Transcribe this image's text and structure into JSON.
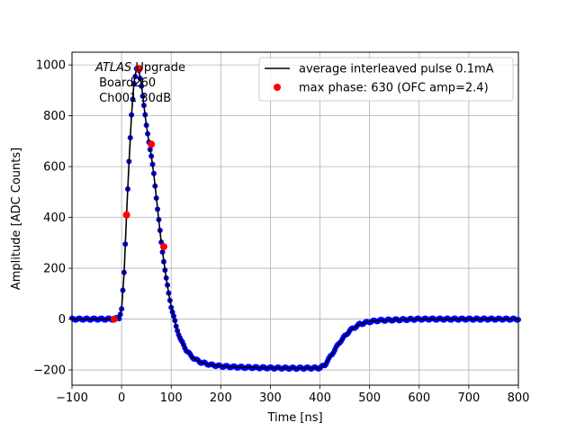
{
  "chart_data": {
    "type": "scatter",
    "title": "",
    "xlabel": "Time [ns]",
    "ylabel": "Amplitude [ADC Counts]",
    "xlim": [
      -100,
      800
    ],
    "ylim": [
      -260,
      1050
    ],
    "xticks": [
      -100,
      0,
      100,
      200,
      300,
      400,
      500,
      600,
      700,
      800
    ],
    "yticks": [
      -200,
      0,
      200,
      400,
      600,
      800,
      1000
    ],
    "grid": true,
    "legend_position": "top-right",
    "annotation": {
      "italic": "ATLAS",
      "rest": " Upgrade",
      "line2": " Board260",
      "line3": " Ch001 30dB"
    },
    "series": [
      {
        "name": "average interleaved pulse 0.1mA",
        "kind": "line",
        "color": "#000000",
        "points_color": "#0000ff",
        "x": [
          -100,
          -60,
          -30,
          -15,
          -5,
          0,
          5,
          10,
          15,
          20,
          25,
          30,
          35,
          40,
          45,
          50,
          55,
          60,
          65,
          70,
          75,
          80,
          85,
          90,
          95,
          100,
          110,
          120,
          130,
          140,
          150,
          160,
          170,
          180,
          200,
          225,
          250,
          300,
          350,
          400,
          410,
          420,
          440,
          460,
          480,
          500,
          520,
          550,
          600,
          650,
          700,
          750,
          800
        ],
        "y": [
          0,
          0,
          0,
          0,
          5,
          40,
          180,
          410,
          620,
          800,
          930,
          985,
          975,
          920,
          840,
          760,
          700,
          640,
          570,
          480,
          390,
          300,
          230,
          160,
          100,
          50,
          -30,
          -85,
          -120,
          -145,
          -160,
          -170,
          -175,
          -180,
          -185,
          -188,
          -190,
          -192,
          -193,
          -192,
          -180,
          -150,
          -90,
          -45,
          -20,
          -10,
          -5,
          -3,
          0,
          0,
          0,
          0,
          0
        ]
      },
      {
        "name": "max phase: 630 (OFC amp=2.4)",
        "kind": "markers",
        "color": "#ff0000",
        "x": [
          -15,
          10,
          35,
          60,
          85
        ],
        "y": [
          0,
          410,
          985,
          688,
          285
        ]
      }
    ]
  }
}
